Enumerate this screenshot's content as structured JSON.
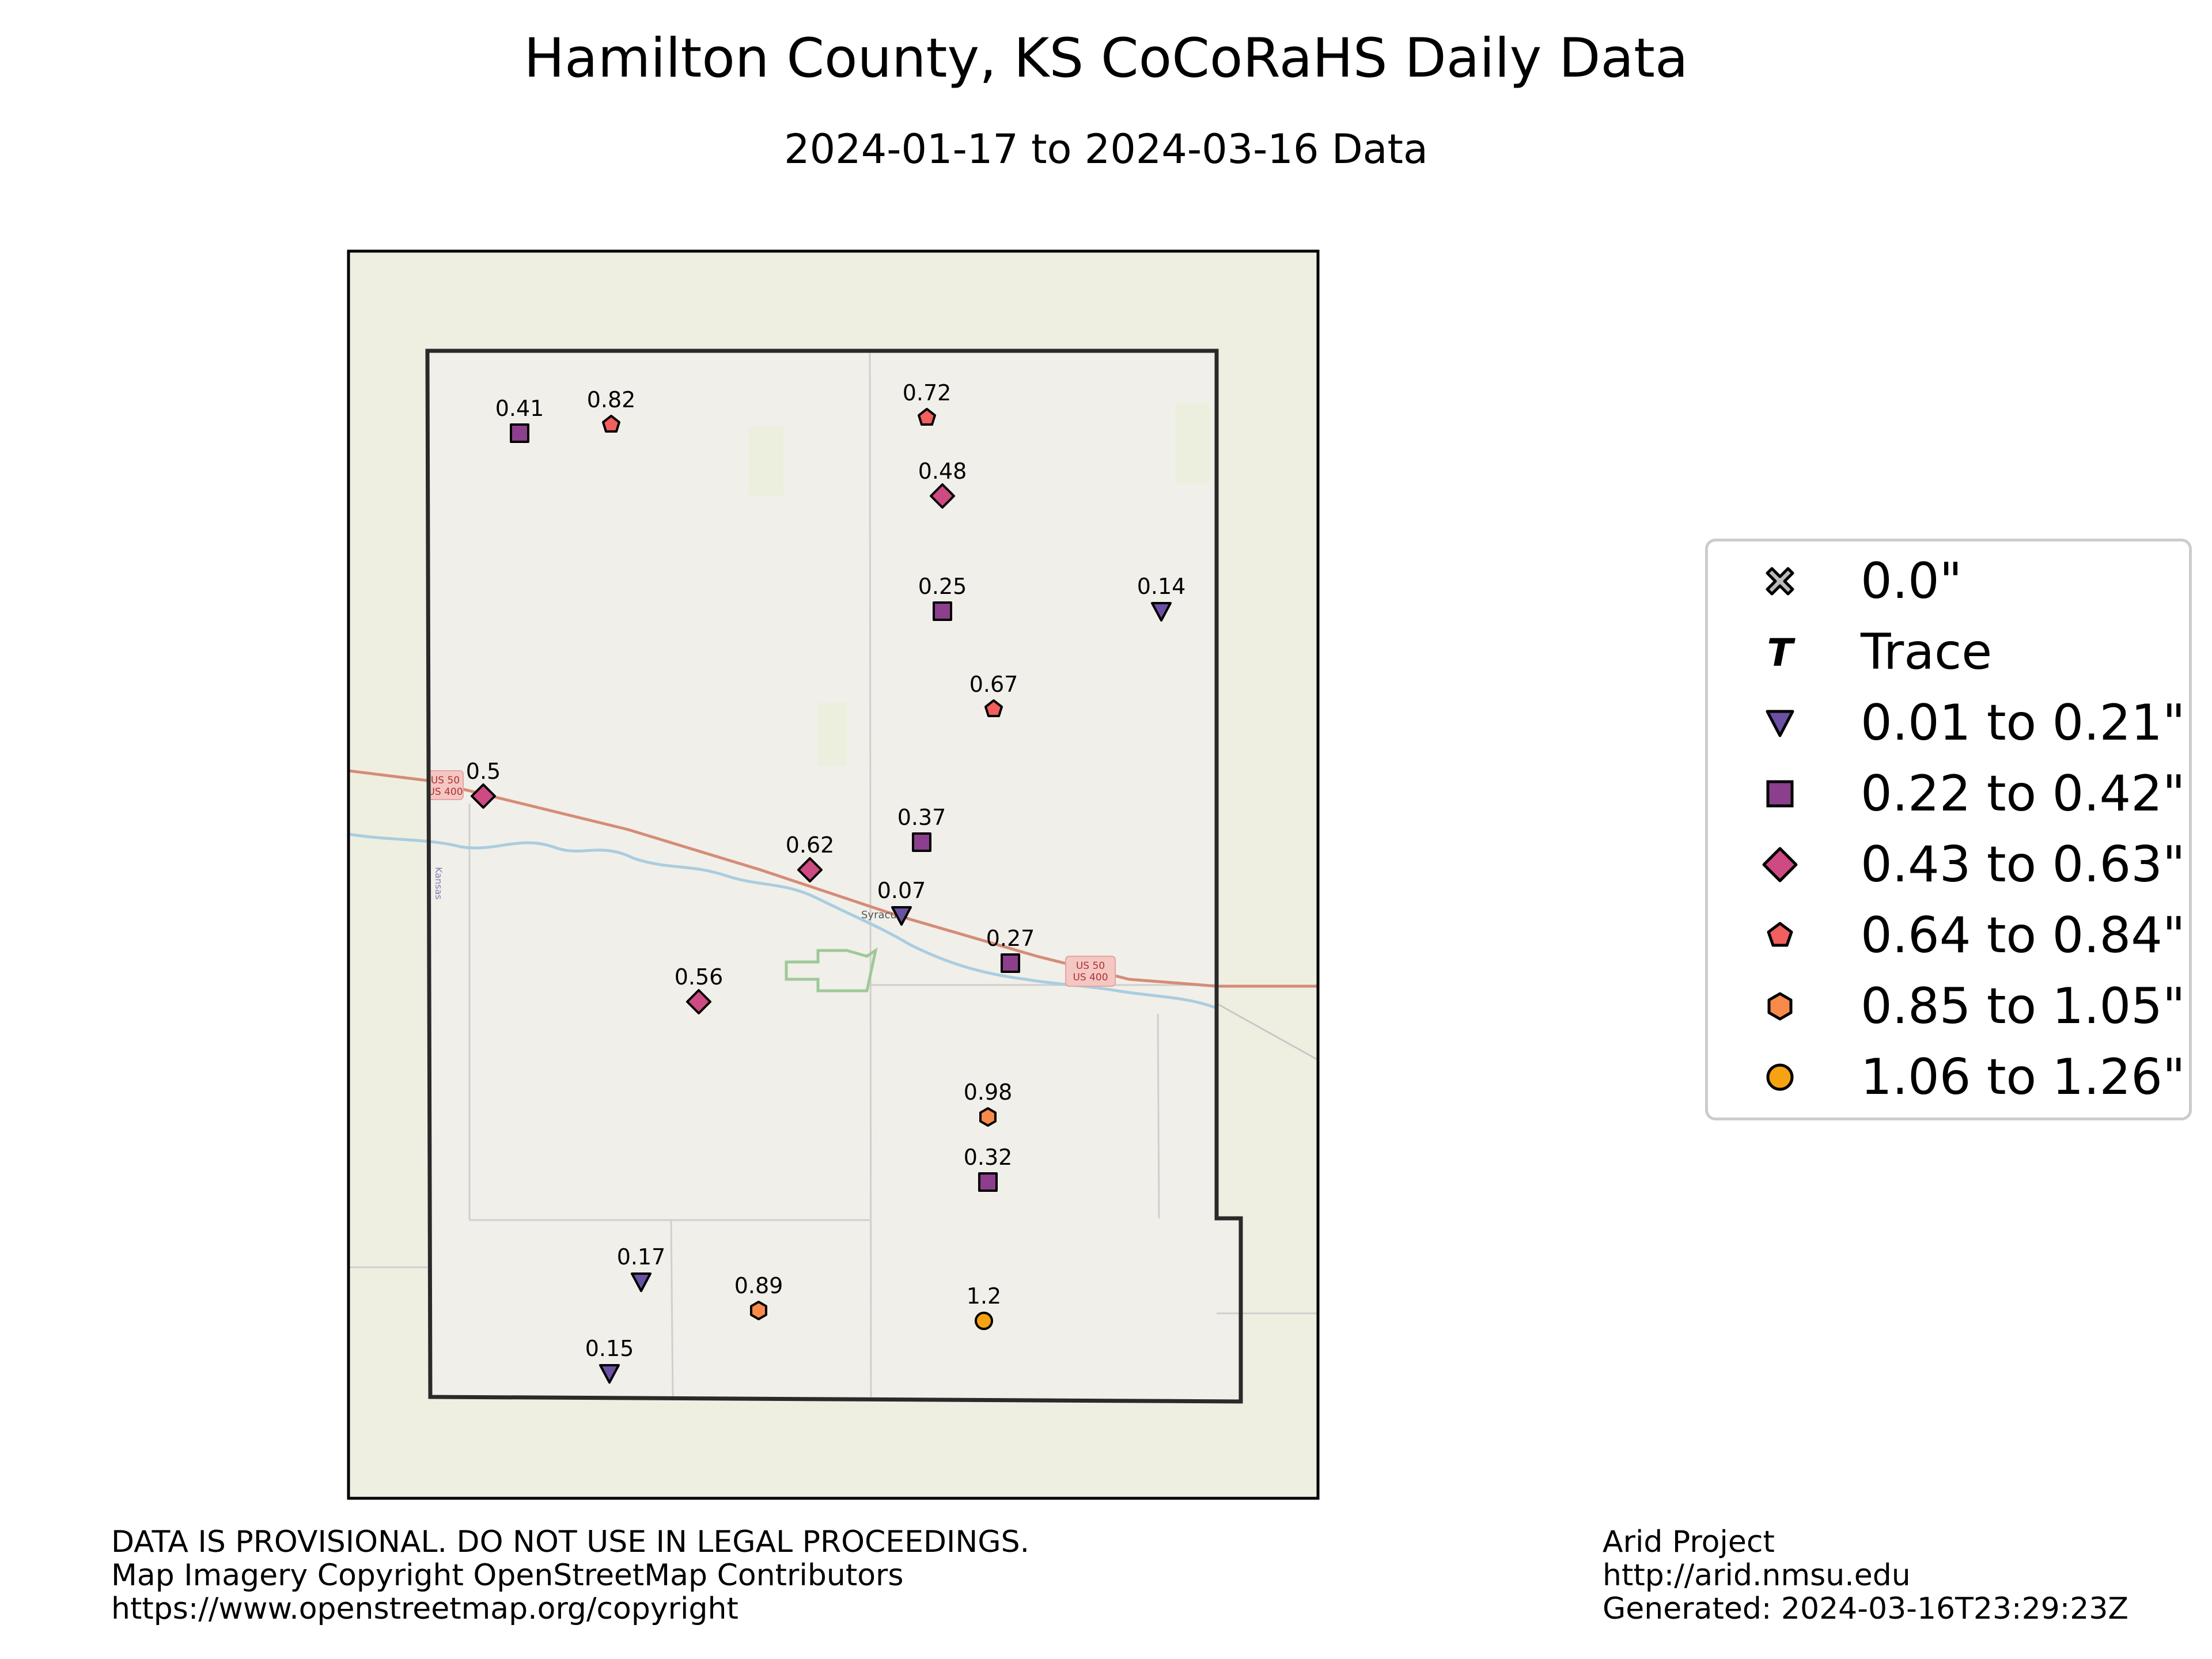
{
  "title": "Hamilton County, KS CoCoRaHS Daily Data",
  "subtitle": "2024-01-17 to 2024-03-16 Data",
  "legend": [
    {
      "label": "0.0\"",
      "marker": "x-mark-icon",
      "color": "#bbbbbb"
    },
    {
      "label": "Trace",
      "marker": "trace-t-icon",
      "color": "#000000"
    },
    {
      "label": "0.01 to 0.21\"",
      "marker": "triangle-down-icon",
      "color": "#6a51a3"
    },
    {
      "label": "0.22 to 0.42\"",
      "marker": "square-icon",
      "color": "#8c3f8c"
    },
    {
      "label": "0.43 to 0.63\"",
      "marker": "diamond-icon",
      "color": "#cd4a82"
    },
    {
      "label": "0.64 to 0.84\"",
      "marker": "pentagon-icon",
      "color": "#f1605d"
    },
    {
      "label": "0.85 to 1.05\"",
      "marker": "hexagon-icon",
      "color": "#f88a4a"
    },
    {
      "label": "1.06 to 1.26\"",
      "marker": "circle-icon",
      "color": "#f5a213"
    }
  ],
  "map": {
    "city_label": "Syracuse",
    "state_label": "Kansas",
    "shields": [
      {
        "line1": "US 50",
        "line2": "US 400"
      },
      {
        "line1": "US 50",
        "line2": "US 400"
      }
    ]
  },
  "stations": [
    {
      "value": "0.41",
      "marker": "square"
    },
    {
      "value": "0.82",
      "marker": "pentagon"
    },
    {
      "value": "0.72",
      "marker": "pentagon"
    },
    {
      "value": "0.48",
      "marker": "diamond"
    },
    {
      "value": "0.25",
      "marker": "square"
    },
    {
      "value": "0.14",
      "marker": "triangle"
    },
    {
      "value": "0.67",
      "marker": "pentagon"
    },
    {
      "value": "0.5",
      "marker": "diamond"
    },
    {
      "value": "0.62",
      "marker": "diamond"
    },
    {
      "value": "0.37",
      "marker": "square"
    },
    {
      "value": "0.07",
      "marker": "triangle"
    },
    {
      "value": "0.27",
      "marker": "square"
    },
    {
      "value": "0.56",
      "marker": "diamond"
    },
    {
      "value": "0.98",
      "marker": "hexagon"
    },
    {
      "value": "0.32",
      "marker": "square"
    },
    {
      "value": "0.17",
      "marker": "triangle"
    },
    {
      "value": "0.89",
      "marker": "hexagon"
    },
    {
      "value": "1.2",
      "marker": "circle"
    },
    {
      "value": "0.15",
      "marker": "triangle"
    }
  ],
  "footer_left": [
    "DATA IS PROVISIONAL. DO NOT USE IN LEGAL PROCEEDINGS.",
    "Map Imagery Copyright OpenStreetMap Contributors",
    "https://www.openstreetmap.org/copyright"
  ],
  "footer_right": [
    "Arid Project",
    "http://arid.nmsu.edu",
    "Generated: 2024-03-16T23:29:23Z"
  ]
}
